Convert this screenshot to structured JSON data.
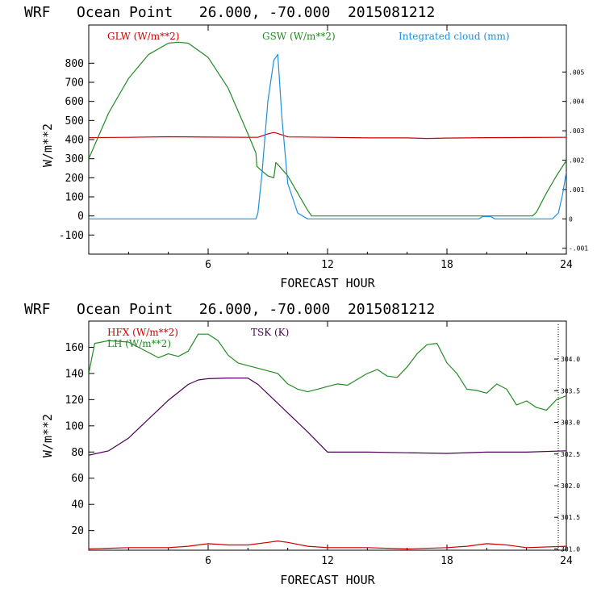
{
  "chart_data": [
    {
      "type": "line",
      "title": "WRF   Ocean Point   26.000, -70.000  2015081212",
      "xlabel": "FORECAST HOUR",
      "ylabel": "W/m**2",
      "xlim": [
        0,
        24
      ],
      "ylim": [
        -200,
        1000
      ],
      "x_ticks": [
        "6",
        "12",
        "18",
        "24"
      ],
      "y_ticks": [
        "-100",
        "0",
        "100",
        "200",
        "300",
        "400",
        "500",
        "600",
        "700",
        "800"
      ],
      "y2lim": [
        -0.0012,
        0.0066
      ],
      "y2_ticks": [
        "-.001",
        "0",
        ".001",
        ".002",
        ".003",
        ".004",
        ".005"
      ],
      "series": [
        {
          "name": "GLW (W/m**2)",
          "color": "#cc0000",
          "axis": "left",
          "x": [
            0,
            2,
            4,
            6,
            8,
            8.5,
            9,
            9.3,
            9.5,
            10,
            12,
            14,
            16,
            17,
            18,
            20,
            22,
            24
          ],
          "y": [
            410,
            412,
            415,
            413,
            412,
            412,
            430,
            437,
            432,
            414,
            412,
            409,
            409,
            406,
            408,
            410,
            411,
            412
          ]
        },
        {
          "name": "GSW (W/m**2)",
          "color": "#228b22",
          "axis": "left",
          "x": [
            0,
            1,
            2,
            3,
            4,
            4.5,
            5,
            6,
            7,
            8,
            8.4,
            8.45,
            8.6,
            9,
            9.3,
            9.4,
            9.5,
            10,
            10.5,
            11,
            11.2,
            12,
            20,
            22.3,
            22.5,
            23,
            23.5,
            24
          ],
          "y": [
            300,
            540,
            720,
            845,
            905,
            910,
            905,
            830,
            670,
            430,
            330,
            260,
            245,
            210,
            200,
            280,
            270,
            210,
            120,
            30,
            0,
            0,
            0,
            0,
            20,
            120,
            210,
            290
          ]
        },
        {
          "name": "Integrated cloud (mm)",
          "color": "#1e8fdd",
          "axis": "right",
          "x": [
            0,
            8.4,
            8.5,
            8.7,
            9,
            9.3,
            9.5,
            9.7,
            10,
            10.5,
            11,
            12,
            19.6,
            19.8,
            20,
            20.2,
            20.4,
            23.3,
            23.6,
            23.8,
            24
          ],
          "y": [
            0,
            0,
            0.0002,
            0.0015,
            0.004,
            0.0054,
            0.0056,
            0.0035,
            0.0012,
            0.0002,
            0,
            0,
            0,
            8e-05,
            8e-05,
            8e-05,
            0,
            0,
            0.0002,
            0.0008,
            0.0016
          ]
        }
      ]
    },
    {
      "type": "line",
      "title": "WRF   Ocean Point   26.000, -70.000  2015081212",
      "xlabel": "FORECAST HOUR",
      "ylabel": "W/m**2",
      "xlim": [
        0,
        24
      ],
      "ylim": [
        5,
        180
      ],
      "x_ticks": [
        "6",
        "12",
        "18",
        "24"
      ],
      "y_ticks": [
        "20",
        "40",
        "60",
        "80",
        "100",
        "120",
        "140",
        "160"
      ],
      "y2lim": [
        300.98,
        304.6
      ],
      "y2_ticks": [
        "301.0",
        "301.5",
        "302.0",
        "302.5",
        "303.0",
        "303.5",
        "304.0"
      ],
      "series": [
        {
          "name": "HFX (W/m**2)",
          "color": "#cc0000",
          "axis": "left",
          "x": [
            0,
            2,
            4,
            5,
            6,
            7,
            8,
            9,
            9.5,
            10,
            11,
            12,
            14,
            16,
            18,
            19,
            20,
            21,
            22,
            24
          ],
          "y": [
            6,
            7,
            7,
            8,
            10,
            9,
            9,
            11,
            12,
            11,
            8,
            7,
            7,
            6,
            7,
            8,
            10,
            9,
            7,
            8
          ]
        },
        {
          "name": "LH (W/m**2)",
          "color": "#228b22",
          "axis": "left",
          "x": [
            0,
            0.3,
            1,
            2,
            3,
            3.5,
            4,
            4.5,
            5,
            5.5,
            6,
            6.5,
            7,
            7.5,
            8,
            9,
            9.5,
            10,
            10.5,
            11,
            11.5,
            12,
            12.5,
            13,
            14,
            14.5,
            15,
            15.5,
            16,
            16.5,
            17,
            17.5,
            18,
            18.5,
            19,
            19.5,
            20,
            20.5,
            21,
            21.5,
            22,
            22.5,
            23,
            23.5,
            24
          ],
          "y": [
            140,
            163,
            165,
            164,
            156,
            152,
            155,
            153,
            157,
            170,
            170,
            165,
            154,
            148,
            146,
            142,
            140,
            132,
            128,
            126,
            128,
            130,
            132,
            131,
            140,
            143,
            138,
            137,
            145,
            155,
            162,
            163,
            148,
            140,
            128,
            127,
            125,
            132,
            128,
            116,
            119,
            114,
            112,
            120,
            123
          ]
        },
        {
          "name": "TSK (K)",
          "color": "#4b0055",
          "axis": "right",
          "x": [
            0,
            1,
            2,
            3,
            4,
            5,
            5.5,
            6,
            7,
            8,
            8.5,
            9,
            10,
            11,
            12,
            14,
            16,
            18,
            20,
            22,
            24
          ],
          "y": [
            302.48,
            302.55,
            302.75,
            303.05,
            303.35,
            303.6,
            303.67,
            303.69,
            303.7,
            303.7,
            303.6,
            303.45,
            303.15,
            302.85,
            302.53,
            302.53,
            302.52,
            302.51,
            302.53,
            302.53,
            302.55
          ]
        }
      ]
    }
  ]
}
